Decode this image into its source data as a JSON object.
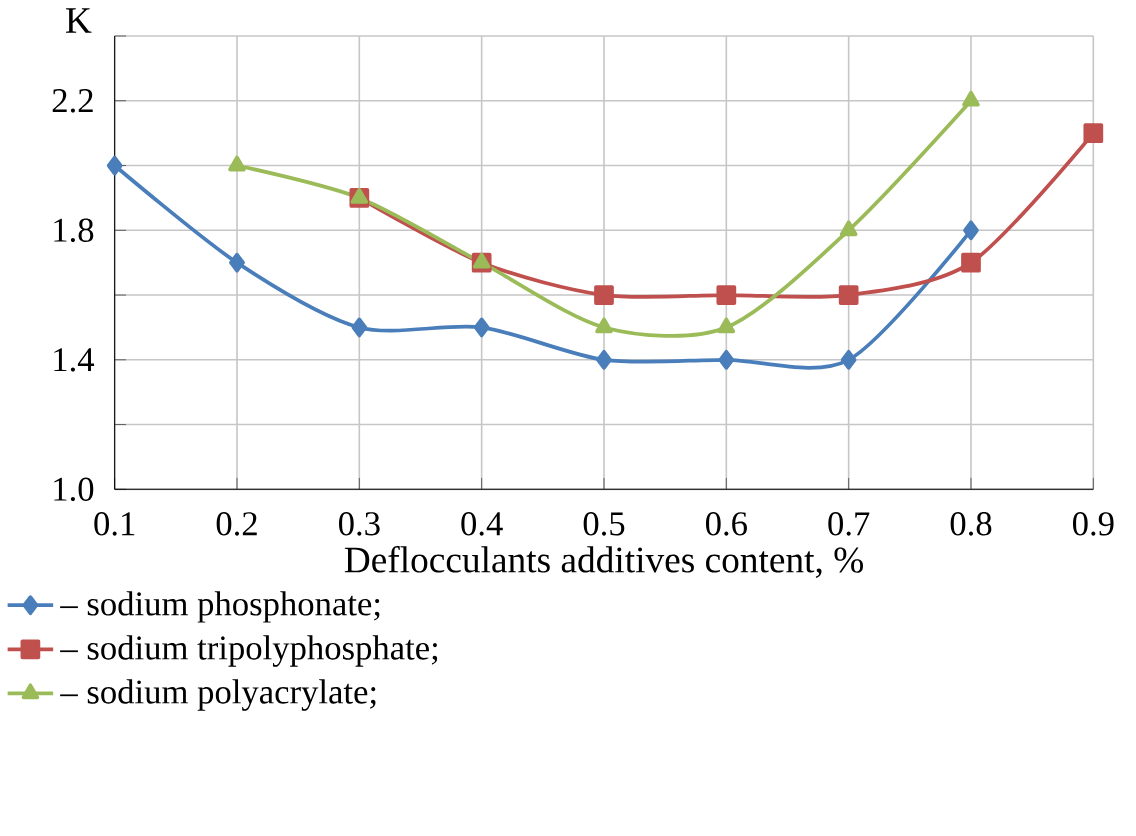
{
  "chart_data": {
    "type": "line",
    "xlabel": "Deflocculants additives content, %",
    "ylabel": "K",
    "xlim": [
      0.1,
      0.9
    ],
    "xticks": [
      0.1,
      0.2,
      0.3,
      0.4,
      0.5,
      0.6,
      0.7,
      0.8,
      0.9
    ],
    "ylim": [
      1.0,
      2.4
    ],
    "yticks": [
      {
        "value": 1.0,
        "label": "1.0"
      },
      {
        "value": 1.2,
        "label": null
      },
      1.4,
      {
        "value": 1.6,
        "label": null
      },
      1.8,
      {
        "value": 2.0,
        "label": null
      },
      2.2,
      {
        "value": 2.4,
        "label": null
      }
    ],
    "grid": true,
    "legend": "bottom",
    "series": [
      {
        "name": "– sodium phosphonate;",
        "color": "#4a7ebb",
        "marker": "diamond",
        "x": [
          0.1,
          0.2,
          0.3,
          0.4,
          0.5,
          0.6,
          0.7,
          0.8
        ],
        "values": [
          2.0,
          1.7,
          1.5,
          1.5,
          1.4,
          1.4,
          1.4,
          1.8
        ]
      },
      {
        "name": "– sodium tripolyphosphate;",
        "color": "#c0504d",
        "marker": "square",
        "x": [
          0.3,
          0.4,
          0.5,
          0.6,
          0.7,
          0.8,
          0.9
        ],
        "values": [
          1.9,
          1.7,
          1.6,
          1.6,
          1.6,
          1.7,
          2.1
        ]
      },
      {
        "name": "– sodium polyacrylate;",
        "color": "#9bbb59",
        "marker": "triangle",
        "x": [
          0.2,
          0.3,
          0.4,
          0.5,
          0.6,
          0.7,
          0.8
        ],
        "values": [
          2.0,
          1.9,
          1.7,
          1.5,
          1.5,
          1.8,
          2.2
        ]
      }
    ]
  }
}
